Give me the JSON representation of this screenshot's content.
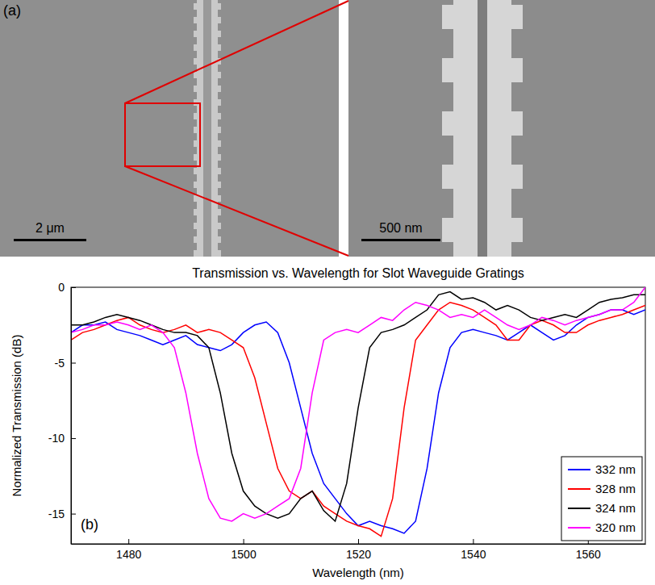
{
  "sem_panel": {
    "label": "(a)",
    "scale_bar_left": "2 μm",
    "scale_bar_right": "500 nm"
  },
  "chart_data": {
    "type": "line",
    "title": "Transmission vs. Wavelength for Slot Waveguide Gratings",
    "x_label": "Wavelength (nm)",
    "y_label": "Normalized Transmission (dB)",
    "annotation": "(b)",
    "xlim": [
      1470,
      1570
    ],
    "xticks": [
      1480,
      1500,
      1520,
      1540,
      1560
    ],
    "ylim": [
      -17,
      0
    ],
    "yticks": [
      -15,
      -10,
      -5,
      0
    ],
    "grid": false,
    "legend": "lower right",
    "x": [
      1470,
      1472,
      1474,
      1476,
      1478,
      1480,
      1482,
      1484,
      1486,
      1488,
      1490,
      1492,
      1494,
      1496,
      1498,
      1500,
      1502,
      1504,
      1506,
      1508,
      1510,
      1512,
      1514,
      1516,
      1518,
      1520,
      1522,
      1524,
      1526,
      1528,
      1530,
      1532,
      1534,
      1536,
      1538,
      1540,
      1542,
      1544,
      1546,
      1548,
      1550,
      1552,
      1554,
      1556,
      1558,
      1560,
      1562,
      1564,
      1566,
      1568,
      1570
    ],
    "series": [
      {
        "name": "332 nm",
        "color": "#0000ff",
        "values": [
          -3,
          -2.5,
          -2.5,
          -2.3,
          -2.8,
          -3,
          -3.2,
          -3.5,
          -3.8,
          -3.5,
          -3.2,
          -3.8,
          -4,
          -4.2,
          -3.8,
          -3,
          -2.5,
          -2.3,
          -3,
          -5,
          -8,
          -11,
          -13,
          -14,
          -15,
          -15.8,
          -15.5,
          -15.8,
          -16,
          -16.3,
          -15.5,
          -12,
          -7,
          -4,
          -3,
          -2.8,
          -3,
          -3.2,
          -3.5,
          -3,
          -2.5,
          -3,
          -3.5,
          -3.2,
          -2.5,
          -2,
          -1.8,
          -1.5,
          -1.5,
          -1.8,
          -1.5
        ]
      },
      {
        "name": "328 nm",
        "color": "#ff0000",
        "values": [
          -3.5,
          -3,
          -2.8,
          -2.5,
          -2.2,
          -2,
          -2.5,
          -2.8,
          -3,
          -2.8,
          -2.5,
          -3,
          -2.8,
          -3,
          -3.5,
          -4,
          -6,
          -9,
          -12,
          -13.5,
          -14,
          -13.5,
          -14.5,
          -15,
          -15.5,
          -15.8,
          -16,
          -16.5,
          -14,
          -8,
          -3.5,
          -2.5,
          -1.5,
          -1,
          -1.2,
          -1.5,
          -2,
          -2.5,
          -3.5,
          -3.5,
          -2.5,
          -2.2,
          -2.5,
          -3,
          -3,
          -2.5,
          -2.2,
          -2,
          -1.8,
          -1.5,
          -1.2
        ]
      },
      {
        "name": "324 nm",
        "color": "#000000",
        "values": [
          -2.5,
          -2.5,
          -2.3,
          -2,
          -1.8,
          -2,
          -2.2,
          -2.5,
          -2.8,
          -3,
          -3,
          -3.2,
          -4,
          -7,
          -11,
          -13.5,
          -14.5,
          -15,
          -15.3,
          -15,
          -14,
          -13.5,
          -14.8,
          -15.5,
          -13,
          -8,
          -4,
          -3,
          -2.8,
          -2.5,
          -2,
          -1.5,
          -0.5,
          -0.3,
          -0.8,
          -0.7,
          -1,
          -1.5,
          -1.2,
          -1.5,
          -2,
          -2.2,
          -2,
          -1.8,
          -2,
          -1.5,
          -1,
          -0.8,
          -0.7,
          -0.5,
          -0.5
        ]
      },
      {
        "name": "320 nm",
        "color": "#ff00ff",
        "values": [
          -3,
          -2.8,
          -2.5,
          -2.5,
          -2.3,
          -2.5,
          -2.8,
          -2.5,
          -3,
          -4,
          -7,
          -11,
          -14,
          -15.3,
          -15.5,
          -15,
          -15.3,
          -15,
          -14.5,
          -14,
          -12,
          -7,
          -3.5,
          -3,
          -2.8,
          -3,
          -2.5,
          -2,
          -2.2,
          -1.5,
          -1,
          -1.2,
          -1.5,
          -2,
          -1.8,
          -2,
          -1.5,
          -2,
          -2.5,
          -2.8,
          -2.5,
          -2,
          -2.2,
          -2.5,
          -2.2,
          -2,
          -1.8,
          -1.5,
          -1.5,
          -1,
          0
        ]
      }
    ]
  }
}
